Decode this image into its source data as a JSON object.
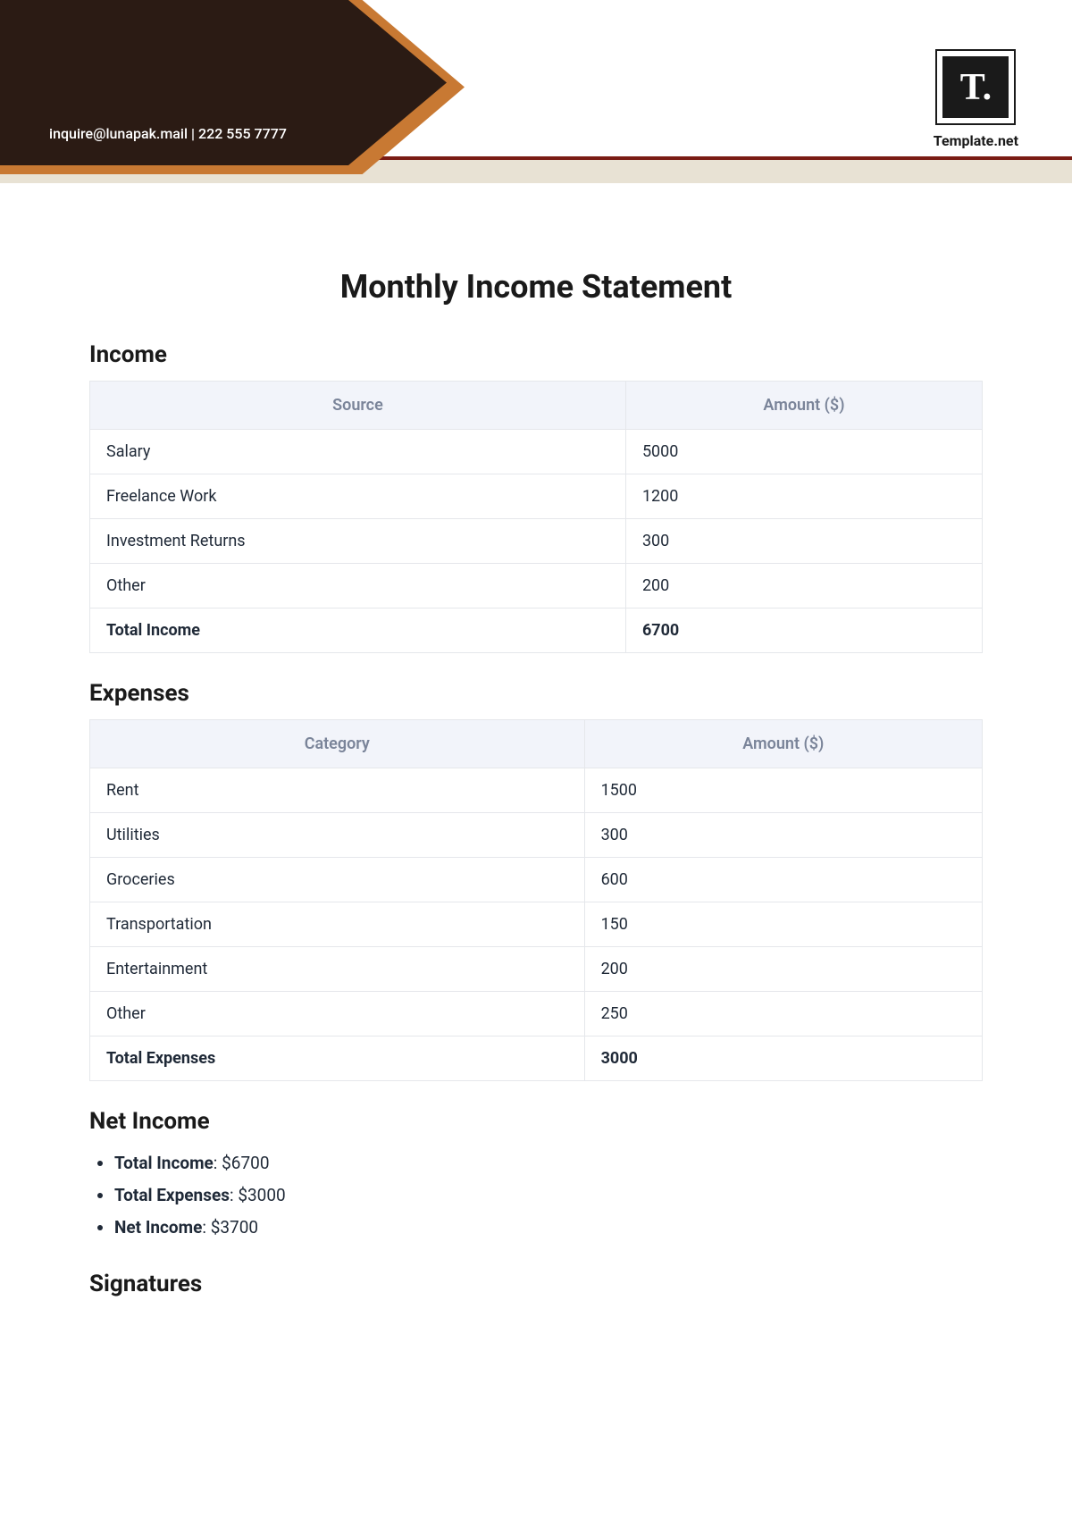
{
  "header": {
    "email": "inquire@lunapak.mail",
    "separator": "  |  ",
    "phone": "222 555 7777",
    "logo_letter": "T.",
    "logo_text": "Template.net",
    "colors": {
      "dark_block": "#2b1b14",
      "orange_block": "#c87933",
      "beige_strip": "#e8e2d4",
      "dark_line": "#7a1c14"
    }
  },
  "title": "Monthly Income Statement",
  "income": {
    "heading": "Income",
    "columns": [
      "Source",
      "Amount ($)"
    ],
    "rows": [
      [
        "Salary",
        "5000"
      ],
      [
        "Freelance Work",
        "1200"
      ],
      [
        "Investment Returns",
        "300"
      ],
      [
        "Other",
        "200"
      ]
    ],
    "total_label": "Total Income",
    "total_value": "6700"
  },
  "expenses": {
    "heading": "Expenses",
    "columns": [
      "Category",
      "Amount ($)"
    ],
    "rows": [
      [
        "Rent",
        "1500"
      ],
      [
        "Utilities",
        "300"
      ],
      [
        "Groceries",
        "600"
      ],
      [
        "Transportation",
        "150"
      ],
      [
        "Entertainment",
        "200"
      ],
      [
        "Other",
        "250"
      ]
    ],
    "total_label": "Total Expenses",
    "total_value": "3000"
  },
  "net": {
    "heading": "Net Income",
    "items": [
      {
        "label": "Total Income",
        "value": "$6700"
      },
      {
        "label": "Total Expenses",
        "value": "$3000"
      },
      {
        "label": "Net Income",
        "value": "$3700"
      }
    ]
  },
  "signatures": {
    "heading": "Signatures"
  },
  "table_style": {
    "header_bg": "#f2f4fa",
    "header_text": "#7a8499",
    "border_color": "#e5e7eb",
    "cell_text": "#1f2937",
    "font_size_header": 18,
    "font_size_cell": 18
  }
}
